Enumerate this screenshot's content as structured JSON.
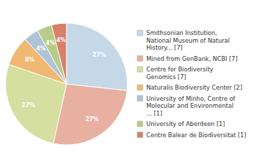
{
  "chart_data": {
    "type": "pie",
    "categories": [
      "Smithsonian Institution,\nNational Museum of Natural\nHistory... [7]",
      "Mined from GenBank, NCBI [7]",
      "Centre for Biodiversity\nGenomics [7]",
      "Naturalis Biodiversity Center [2]",
      "University of Minho, Centre of\nMolecular and Environmental\n... [1]",
      "University of Aberdeen [1]",
      "Centre Balear de Biodiversitat [1]"
    ],
    "values": [
      27,
      27,
      27,
      8,
      4,
      4,
      4
    ],
    "value_labels": [
      "27%",
      "27%",
      "27%",
      "8%",
      "4%",
      "4%",
      "4%"
    ],
    "colors": [
      "#c5d8e8",
      "#e8b0a0",
      "#d4dfa0",
      "#f0b870",
      "#b0c4d8",
      "#b8cc88",
      "#d8806a"
    ],
    "data_labels": true,
    "legend": "right"
  }
}
